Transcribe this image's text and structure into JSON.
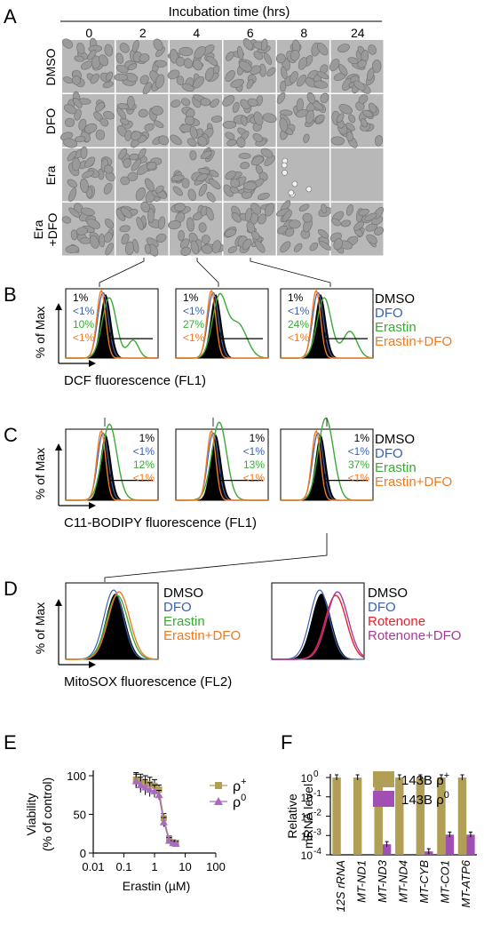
{
  "panels": {
    "A": {
      "letter": "A",
      "header": "Incubation time (hrs)",
      "times": [
        "0",
        "2",
        "4",
        "6",
        "8",
        "24"
      ],
      "rows": [
        "DMSO",
        "DFO",
        "Era",
        "Era\n+DFO"
      ]
    },
    "B": {
      "letter": "B",
      "ylabel": "% of Max",
      "xlabel": "DCF fluorescence (FL1)",
      "legend": [
        {
          "label": "DMSO",
          "color": "#000000"
        },
        {
          "label": "DFO",
          "color": "#3b62b0"
        },
        {
          "label": "Erastin",
          "color": "#3aaa35"
        },
        {
          "label": "Erastin+DFO",
          "color": "#f07a21"
        }
      ],
      "stats": [
        [
          "1%",
          "<1%",
          "10%",
          "<1%"
        ],
        [
          "1%",
          "<1%",
          "27%",
          "<1%"
        ],
        [
          "1%",
          "<1%",
          "24%",
          "<1%"
        ]
      ]
    },
    "C": {
      "letter": "C",
      "ylabel": "% of Max",
      "xlabel": "C11-BODIPY fluorescence (FL1)",
      "legend": [
        {
          "label": "DMSO",
          "color": "#000000"
        },
        {
          "label": "DFO",
          "color": "#3b62b0"
        },
        {
          "label": "Erastin",
          "color": "#3aaa35"
        },
        {
          "label": "Erastin+DFO",
          "color": "#f07a21"
        }
      ],
      "stats": [
        [
          "1%",
          "<1%",
          "12%",
          "<1%"
        ],
        [
          "1%",
          "<1%",
          "13%",
          "<1%"
        ],
        [
          "1%",
          "<1%",
          "37%",
          "<1%"
        ]
      ]
    },
    "D": {
      "letter": "D",
      "ylabel": "% of Max",
      "xlabel": "MitoSOX fluorescence (FL2)",
      "legend_left": [
        {
          "label": "DMSO",
          "color": "#000000"
        },
        {
          "label": "DFO",
          "color": "#3b62b0"
        },
        {
          "label": "Erastin",
          "color": "#3aaa35"
        },
        {
          "label": "Erastin+DFO",
          "color": "#f07a21"
        }
      ],
      "legend_right": [
        {
          "label": "DMSO",
          "color": "#000000"
        },
        {
          "label": "DFO",
          "color": "#3b62b0"
        },
        {
          "label": "Rotenone",
          "color": "#e8202a"
        },
        {
          "label": "Rotenone+DFO",
          "color": "#a63a9c"
        }
      ]
    },
    "E": {
      "letter": "E",
      "ylabel_line1": "Viability",
      "ylabel_line2": "(% of control)",
      "xlabel": "Erastin (µM)"
    },
    "F": {
      "letter": "F",
      "ylabel_line1": "Relative",
      "ylabel_line2": "mRNA level"
    }
  },
  "chart_data": [
    {
      "type": "line",
      "xlabel": "Erastin (µM)",
      "ylabel": "Viability (% of control)",
      "xscale": "log",
      "xlim": [
        0.01,
        100
      ],
      "ylim": [
        0,
        100
      ],
      "xticks": [
        "0.01",
        "0.1",
        "1",
        "10",
        "100"
      ],
      "yticks": [
        "0",
        "50",
        "100"
      ],
      "x": [
        0.25,
        0.35,
        0.5,
        0.7,
        1.0,
        1.4,
        2.0,
        3.0,
        4.0,
        5.0
      ],
      "series": [
        {
          "name": "ρ+",
          "color": "#b09f55",
          "marker": "square",
          "values": [
            95,
            92,
            90,
            89,
            87,
            82,
            45,
            18,
            14,
            13
          ],
          "errors": [
            9,
            10,
            10,
            9,
            8,
            6,
            6,
            4,
            3,
            3
          ]
        },
        {
          "name": "ρ0",
          "color": "#a86bc0",
          "marker": "triangle",
          "values": [
            93,
            88,
            85,
            82,
            80,
            75,
            40,
            16,
            13,
            12
          ],
          "errors": [
            9,
            10,
            10,
            9,
            8,
            6,
            6,
            4,
            3,
            3
          ]
        }
      ]
    },
    {
      "type": "bar",
      "ylabel": "Relative mRNA level",
      "yscale": "log",
      "ylim": [
        0.0001,
        1
      ],
      "yticks": [
        "10-4",
        "10-3",
        "10-2",
        "10-1",
        "100"
      ],
      "categories": [
        "12S rRNA",
        "MT-ND1",
        "MT-ND3",
        "MT-ND4",
        "MT-CYB",
        "MT-CO1",
        "MT-ATP6"
      ],
      "series": [
        {
          "name": "143B ρ+",
          "color": "#b09f55",
          "values": [
            1,
            1,
            1,
            1,
            1,
            1,
            1
          ]
        },
        {
          "name": "143B ρ0",
          "color": "#a24fb4",
          "values": [
            0.0001,
            0.0001,
            0.00035,
            0.0001,
            0.00015,
            0.0011,
            0.0011
          ]
        }
      ]
    }
  ]
}
